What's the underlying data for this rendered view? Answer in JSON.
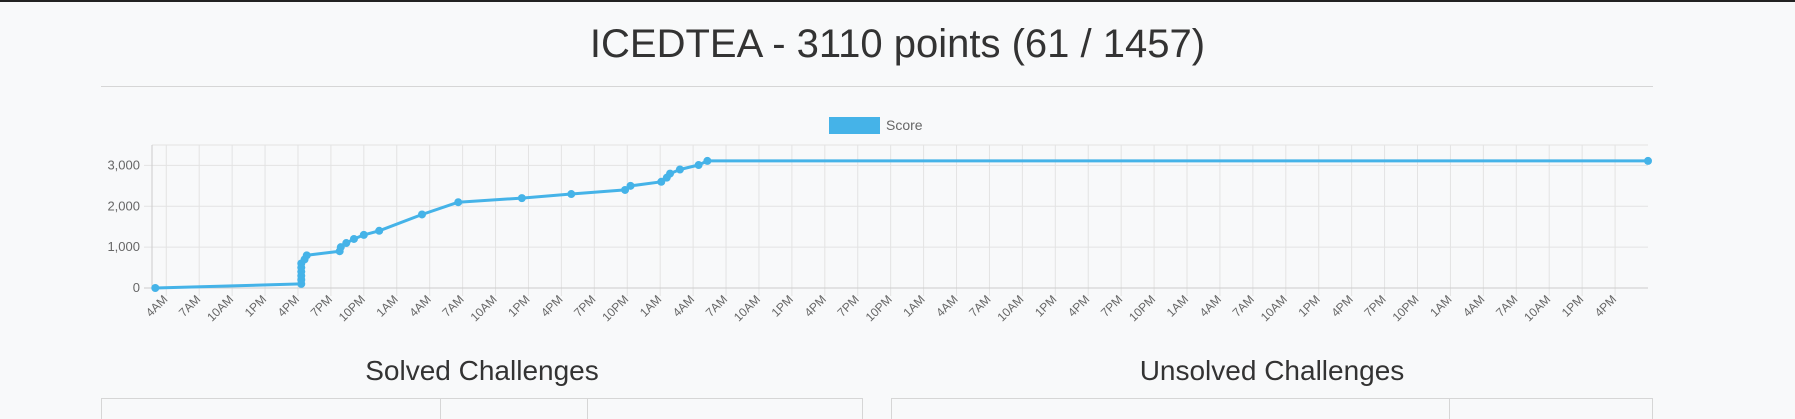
{
  "page": {
    "title": "ICEDTEA - 3110 points (61 / 1457)"
  },
  "sections": {
    "solved_heading": "Solved Challenges",
    "unsolved_heading": "Unsolved Challenges"
  },
  "chart_data": {
    "type": "line",
    "title": "",
    "xlabel": "",
    "ylabel": "",
    "ylim": [
      0,
      3500
    ],
    "y_ticks": [
      0,
      1000,
      2000,
      3000
    ],
    "grid": true,
    "legend_position": "top-center",
    "colors": {
      "series": "#45b3e8",
      "grid": "#e3e3e3",
      "axis": "#cccccc"
    },
    "x_range_hours": [
      0,
      135
    ],
    "x_ticks": [
      {
        "hours": 0,
        "label": "4AM"
      },
      {
        "hours": 3,
        "label": "7AM"
      },
      {
        "hours": 6,
        "label": "10AM"
      },
      {
        "hours": 9,
        "label": "1PM"
      },
      {
        "hours": 12,
        "label": "4PM"
      },
      {
        "hours": 15,
        "label": "7PM"
      },
      {
        "hours": 18,
        "label": "10PM"
      },
      {
        "hours": 21,
        "label": "1AM"
      },
      {
        "hours": 24,
        "label": "4AM"
      },
      {
        "hours": 27,
        "label": "7AM"
      },
      {
        "hours": 30,
        "label": "10AM"
      },
      {
        "hours": 33,
        "label": "1PM"
      },
      {
        "hours": 36,
        "label": "4PM"
      },
      {
        "hours": 39,
        "label": "7PM"
      },
      {
        "hours": 42,
        "label": "10PM"
      },
      {
        "hours": 45,
        "label": "1AM"
      },
      {
        "hours": 48,
        "label": "4AM"
      },
      {
        "hours": 51,
        "label": "7AM"
      },
      {
        "hours": 54,
        "label": "10AM"
      },
      {
        "hours": 57,
        "label": "1PM"
      },
      {
        "hours": 60,
        "label": "4PM"
      },
      {
        "hours": 63,
        "label": "7PM"
      },
      {
        "hours": 66,
        "label": "10PM"
      },
      {
        "hours": 69,
        "label": "1AM"
      },
      {
        "hours": 72,
        "label": "4AM"
      },
      {
        "hours": 75,
        "label": "7AM"
      },
      {
        "hours": 78,
        "label": "10AM"
      },
      {
        "hours": 81,
        "label": "1PM"
      },
      {
        "hours": 84,
        "label": "4PM"
      },
      {
        "hours": 87,
        "label": "7PM"
      },
      {
        "hours": 90,
        "label": "10PM"
      },
      {
        "hours": 93,
        "label": "1AM"
      },
      {
        "hours": 96,
        "label": "4AM"
      },
      {
        "hours": 99,
        "label": "7AM"
      },
      {
        "hours": 102,
        "label": "10AM"
      },
      {
        "hours": 105,
        "label": "1PM"
      },
      {
        "hours": 108,
        "label": "4PM"
      },
      {
        "hours": 111,
        "label": "7PM"
      },
      {
        "hours": 114,
        "label": "10PM"
      },
      {
        "hours": 117,
        "label": "1AM"
      },
      {
        "hours": 120,
        "label": "4AM"
      },
      {
        "hours": 123,
        "label": "7AM"
      },
      {
        "hours": 126,
        "label": "10AM"
      },
      {
        "hours": 129,
        "label": "1PM"
      },
      {
        "hours": 132,
        "label": "4PM"
      }
    ],
    "series": [
      {
        "name": "Score",
        "points": [
          {
            "hours": -1,
            "value": 0
          },
          {
            "hours": 12.3,
            "value": 100
          },
          {
            "hours": 12.3,
            "value": 200
          },
          {
            "hours": 12.3,
            "value": 300
          },
          {
            "hours": 12.3,
            "value": 400
          },
          {
            "hours": 12.3,
            "value": 500
          },
          {
            "hours": 12.3,
            "value": 600
          },
          {
            "hours": 12.6,
            "value": 700
          },
          {
            "hours": 12.8,
            "value": 800
          },
          {
            "hours": 15.8,
            "value": 900
          },
          {
            "hours": 15.9,
            "value": 1000
          },
          {
            "hours": 16.4,
            "value": 1100
          },
          {
            "hours": 17.1,
            "value": 1200
          },
          {
            "hours": 18.0,
            "value": 1300
          },
          {
            "hours": 19.4,
            "value": 1400
          },
          {
            "hours": 23.3,
            "value": 1800
          },
          {
            "hours": 26.6,
            "value": 2100
          },
          {
            "hours": 32.4,
            "value": 2200
          },
          {
            "hours": 36.9,
            "value": 2300
          },
          {
            "hours": 41.8,
            "value": 2400
          },
          {
            "hours": 42.3,
            "value": 2500
          },
          {
            "hours": 45.1,
            "value": 2600
          },
          {
            "hours": 45.6,
            "value": 2700
          },
          {
            "hours": 45.9,
            "value": 2800
          },
          {
            "hours": 46.8,
            "value": 2900
          },
          {
            "hours": 48.5,
            "value": 3010
          },
          {
            "hours": 49.3,
            "value": 3110
          },
          {
            "hours": 135,
            "value": 3110
          }
        ]
      }
    ]
  }
}
